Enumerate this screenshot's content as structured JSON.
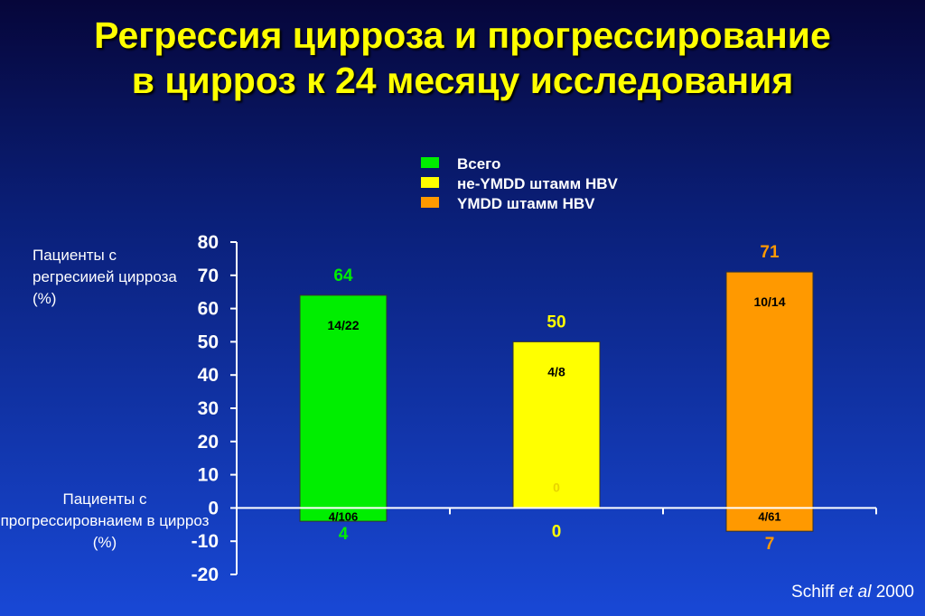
{
  "title": {
    "line1": "Регрессия цирроза и прогрессирование",
    "line2": "в цирроз к 24 месяцу исследования"
  },
  "legend": [
    {
      "label": "Всего",
      "color": "#00ee00"
    },
    {
      "label": "не-YMDD штамм HBV",
      "color": "#ffff00"
    },
    {
      "label": "YMDD штамм HBV",
      "color": "#ff9900"
    }
  ],
  "y_label_regression": "Пациенты с регресиией цирроза  (%)",
  "y_label_progression": "Пациенты с прогрессировнаием в цирроз (%)",
  "citation": {
    "author": "Schiff",
    "etal": "et al",
    "year": "2000"
  },
  "chart_data": {
    "type": "bar",
    "categories": [
      "Всего",
      "не-YMDD штамм HBV",
      "YMDD штамм HBV"
    ],
    "ylim": [
      -20,
      80
    ],
    "yticks": [
      80,
      70,
      60,
      50,
      40,
      30,
      20,
      10,
      0,
      -10,
      -20
    ],
    "series": [
      {
        "name": "Пациенты с регресиией цирроза  (%)",
        "values": [
          64,
          50,
          71
        ],
        "value_labels": [
          "64",
          "50",
          "71"
        ],
        "fraction_labels": [
          "14/22",
          "4/8",
          "10/14"
        ]
      },
      {
        "name": "Пациенты с прогрессировнаием в цирроз (%)",
        "values": [
          -4,
          0,
          -7
        ],
        "value_labels": [
          "4",
          "0",
          "7"
        ],
        "fraction_labels": [
          "4/106",
          "0",
          "4/61"
        ]
      }
    ],
    "colors": [
      "#00ee00",
      "#ffff00",
      "#ff9900"
    ],
    "value_label_colors": [
      "#00ee00",
      "#ffff00",
      "#ff9900"
    ]
  }
}
